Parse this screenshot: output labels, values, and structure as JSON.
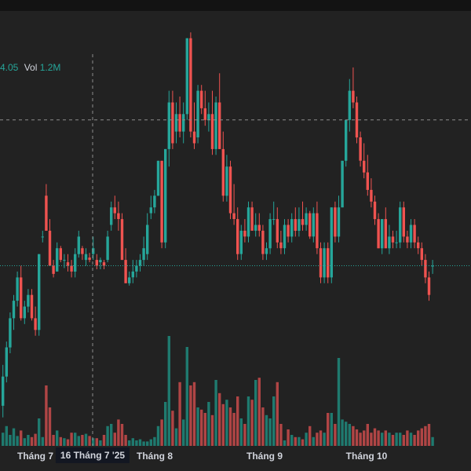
{
  "legend": {
    "value_text": "4.05",
    "vol_label": "Vol",
    "vol_value": "1.2M"
  },
  "crosshair": {
    "date_label": "16 Tháng 7 '25"
  },
  "colors": {
    "background": "#222222",
    "up": "#26a69a",
    "down": "#ef5350",
    "up_volume": "#1f7a6f",
    "down_volume": "#b04545",
    "axis_text": "#d1d4dc",
    "crosshair_line": "#8c8c8c",
    "last_price_line": "#26a69a"
  },
  "chart_data": {
    "type": "candlestick",
    "x_axis_labels": [
      "Tháng 7",
      "Tháng 8",
      "Tháng 9",
      "Tháng 10"
    ],
    "crosshair_price": 9.7,
    "last_price": 8.45,
    "candles": [
      {
        "o": 7.25,
        "h": 7.6,
        "l": 7.15,
        "c": 7.5,
        "v": 12
      },
      {
        "o": 7.5,
        "h": 7.8,
        "l": 7.45,
        "c": 7.75,
        "v": 18
      },
      {
        "o": 7.75,
        "h": 8.05,
        "l": 7.7,
        "c": 8.0,
        "v": 10
      },
      {
        "o": 8.0,
        "h": 8.2,
        "l": 7.9,
        "c": 8.15,
        "v": 16
      },
      {
        "o": 8.15,
        "h": 8.4,
        "l": 8.1,
        "c": 8.35,
        "v": 9
      },
      {
        "o": 8.35,
        "h": 8.45,
        "l": 7.98,
        "c": 8.0,
        "v": 14
      },
      {
        "o": 8.0,
        "h": 8.15,
        "l": 7.95,
        "c": 8.1,
        "v": 7
      },
      {
        "o": 8.1,
        "h": 8.25,
        "l": 8.05,
        "c": 8.2,
        "v": 10
      },
      {
        "o": 8.2,
        "h": 8.25,
        "l": 7.98,
        "c": 8.0,
        "v": 8
      },
      {
        "o": 8.0,
        "h": 8.1,
        "l": 7.85,
        "c": 7.9,
        "v": 11
      },
      {
        "o": 7.9,
        "h": 8.55,
        "l": 7.85,
        "c": 8.55,
        "v": 25
      },
      {
        "o": 8.7,
        "h": 8.75,
        "l": 8.65,
        "c": 8.7,
        "v": 8
      },
      {
        "o": 9.05,
        "h": 9.15,
        "l": 8.75,
        "c": 8.75,
        "v": 55
      },
      {
        "o": 8.75,
        "h": 8.85,
        "l": 8.45,
        "c": 8.45,
        "v": 35
      },
      {
        "o": 8.45,
        "h": 8.5,
        "l": 8.35,
        "c": 8.38,
        "v": 10
      },
      {
        "o": 8.4,
        "h": 8.65,
        "l": 8.4,
        "c": 8.6,
        "v": 14
      },
      {
        "o": 8.6,
        "h": 8.62,
        "l": 8.48,
        "c": 8.5,
        "v": 8
      },
      {
        "o": 8.5,
        "h": 8.55,
        "l": 8.43,
        "c": 8.5,
        "v": 7
      },
      {
        "o": 8.48,
        "h": 8.55,
        "l": 8.4,
        "c": 8.45,
        "v": 6
      },
      {
        "o": 8.45,
        "h": 8.5,
        "l": 8.35,
        "c": 8.4,
        "v": 12
      },
      {
        "o": 8.4,
        "h": 8.6,
        "l": 8.35,
        "c": 8.55,
        "v": 12
      },
      {
        "o": 8.55,
        "h": 8.75,
        "l": 8.52,
        "c": 8.7,
        "v": 9
      },
      {
        "o": 8.6,
        "h": 8.62,
        "l": 8.5,
        "c": 8.55,
        "v": 10
      },
      {
        "o": 8.5,
        "h": 8.6,
        "l": 8.45,
        "c": 8.55,
        "v": 11
      },
      {
        "o": 8.52,
        "h": 8.56,
        "l": 8.48,
        "c": 8.5,
        "v": 9
      },
      {
        "o": 8.55,
        "h": 8.7,
        "l": 8.5,
        "c": 8.6,
        "v": 7
      },
      {
        "o": 8.5,
        "h": 8.55,
        "l": 8.42,
        "c": 8.45,
        "v": 7
      },
      {
        "o": 8.48,
        "h": 8.52,
        "l": 8.42,
        "c": 8.5,
        "v": 5
      },
      {
        "o": 8.48,
        "h": 8.5,
        "l": 8.42,
        "c": 8.45,
        "v": 10
      },
      {
        "o": 8.5,
        "h": 8.75,
        "l": 8.48,
        "c": 8.7,
        "v": 18
      },
      {
        "o": 8.8,
        "h": 9.0,
        "l": 8.75,
        "c": 8.95,
        "v": 20
      },
      {
        "o": 8.95,
        "h": 9.05,
        "l": 8.85,
        "c": 8.9,
        "v": 12
      },
      {
        "o": 8.9,
        "h": 9.0,
        "l": 8.75,
        "c": 8.85,
        "v": 24
      },
      {
        "o": 8.85,
        "h": 8.9,
        "l": 8.5,
        "c": 8.5,
        "v": 20
      },
      {
        "o": 8.5,
        "h": 8.6,
        "l": 8.3,
        "c": 8.3,
        "v": 10
      },
      {
        "o": 8.3,
        "h": 8.4,
        "l": 8.28,
        "c": 8.35,
        "v": 5
      },
      {
        "o": 8.35,
        "h": 8.5,
        "l": 8.3,
        "c": 8.4,
        "v": 7
      },
      {
        "o": 8.4,
        "h": 8.5,
        "l": 8.35,
        "c": 8.45,
        "v": 5
      },
      {
        "o": 8.45,
        "h": 8.55,
        "l": 8.4,
        "c": 8.5,
        "v": 6
      },
      {
        "o": 8.5,
        "h": 8.7,
        "l": 8.45,
        "c": 8.6,
        "v": 4
      },
      {
        "o": 8.55,
        "h": 8.9,
        "l": 8.5,
        "c": 8.8,
        "v": 4
      },
      {
        "o": 8.9,
        "h": 9.05,
        "l": 8.85,
        "c": 8.95,
        "v": 6
      },
      {
        "o": 8.95,
        "h": 9.1,
        "l": 8.9,
        "c": 9.05,
        "v": 8
      },
      {
        "o": 9.05,
        "h": 9.35,
        "l": 9.05,
        "c": 9.35,
        "v": 18
      },
      {
        "o": 9.35,
        "h": 9.35,
        "l": 8.6,
        "c": 8.65,
        "v": 24
      },
      {
        "o": 8.65,
        "h": 9.45,
        "l": 8.6,
        "c": 9.45,
        "v": 40
      },
      {
        "o": 9.45,
        "h": 9.95,
        "l": 9.3,
        "c": 9.85,
        "v": 100
      },
      {
        "o": 9.85,
        "h": 9.95,
        "l": 9.45,
        "c": 9.5,
        "v": 32
      },
      {
        "o": 9.6,
        "h": 9.85,
        "l": 9.5,
        "c": 9.75,
        "v": 16
      },
      {
        "o": 9.75,
        "h": 9.9,
        "l": 9.55,
        "c": 9.6,
        "v": 58
      },
      {
        "o": 9.6,
        "h": 9.85,
        "l": 9.5,
        "c": 9.75,
        "v": 24
      },
      {
        "o": 9.75,
        "h": 10.4,
        "l": 9.7,
        "c": 10.4,
        "v": 90
      },
      {
        "o": 10.4,
        "h": 10.45,
        "l": 9.55,
        "c": 9.6,
        "v": 55
      },
      {
        "o": 9.6,
        "h": 9.85,
        "l": 9.45,
        "c": 9.5,
        "v": 58
      },
      {
        "o": 9.55,
        "h": 10.0,
        "l": 9.5,
        "c": 9.95,
        "v": 35
      },
      {
        "o": 9.95,
        "h": 10.0,
        "l": 9.75,
        "c": 9.8,
        "v": 33
      },
      {
        "o": 9.8,
        "h": 9.95,
        "l": 9.65,
        "c": 9.7,
        "v": 30
      },
      {
        "o": 9.7,
        "h": 9.85,
        "l": 9.6,
        "c": 9.75,
        "v": 40
      },
      {
        "o": 9.75,
        "h": 9.95,
        "l": 9.4,
        "c": 9.45,
        "v": 28
      },
      {
        "o": 9.45,
        "h": 9.9,
        "l": 9.4,
        "c": 9.85,
        "v": 60
      },
      {
        "o": 9.85,
        "h": 10.1,
        "l": 9.45,
        "c": 9.45,
        "v": 48
      },
      {
        "o": 9.45,
        "h": 9.6,
        "l": 9.0,
        "c": 9.05,
        "v": 38
      },
      {
        "o": 9.05,
        "h": 9.4,
        "l": 9.0,
        "c": 9.3,
        "v": 42
      },
      {
        "o": 9.3,
        "h": 9.35,
        "l": 8.85,
        "c": 8.9,
        "v": 35
      },
      {
        "o": 8.9,
        "h": 9.15,
        "l": 8.8,
        "c": 8.85,
        "v": 30
      },
      {
        "o": 8.85,
        "h": 8.95,
        "l": 8.5,
        "c": 8.55,
        "v": 45
      },
      {
        "o": 8.55,
        "h": 8.8,
        "l": 8.5,
        "c": 8.75,
        "v": 25
      },
      {
        "o": 8.75,
        "h": 8.85,
        "l": 8.65,
        "c": 8.7,
        "v": 20
      },
      {
        "o": 8.7,
        "h": 9.0,
        "l": 8.65,
        "c": 8.95,
        "v": 45
      },
      {
        "o": 8.95,
        "h": 9.0,
        "l": 8.75,
        "c": 8.75,
        "v": 42
      },
      {
        "o": 8.75,
        "h": 8.9,
        "l": 8.7,
        "c": 8.8,
        "v": 60
      },
      {
        "o": 8.8,
        "h": 8.9,
        "l": 8.7,
        "c": 8.75,
        "v": 62
      },
      {
        "o": 8.75,
        "h": 8.8,
        "l": 8.5,
        "c": 8.55,
        "v": 35
      },
      {
        "o": 8.55,
        "h": 8.65,
        "l": 8.5,
        "c": 8.6,
        "v": 28
      },
      {
        "o": 8.6,
        "h": 8.9,
        "l": 8.55,
        "c": 8.85,
        "v": 25
      },
      {
        "o": 8.85,
        "h": 9.0,
        "l": 8.8,
        "c": 8.85,
        "v": 45
      },
      {
        "o": 8.85,
        "h": 8.95,
        "l": 8.6,
        "c": 8.65,
        "v": 58
      },
      {
        "o": 8.65,
        "h": 8.75,
        "l": 8.55,
        "c": 8.6,
        "v": 20
      },
      {
        "o": 8.6,
        "h": 8.85,
        "l": 8.55,
        "c": 8.8,
        "v": 5
      },
      {
        "o": 8.8,
        "h": 8.85,
        "l": 8.65,
        "c": 8.7,
        "v": 15
      },
      {
        "o": 8.7,
        "h": 8.9,
        "l": 8.65,
        "c": 8.85,
        "v": 10
      },
      {
        "o": 8.85,
        "h": 8.95,
        "l": 8.7,
        "c": 8.75,
        "v": 8
      },
      {
        "o": 8.75,
        "h": 8.95,
        "l": 8.7,
        "c": 8.85,
        "v": 8
      },
      {
        "o": 8.85,
        "h": 9.0,
        "l": 8.75,
        "c": 8.8,
        "v": 6
      },
      {
        "o": 8.8,
        "h": 8.95,
        "l": 8.75,
        "c": 8.9,
        "v": 12
      },
      {
        "o": 8.9,
        "h": 8.92,
        "l": 8.68,
        "c": 8.7,
        "v": 18
      },
      {
        "o": 8.7,
        "h": 8.95,
        "l": 8.65,
        "c": 8.9,
        "v": 8
      },
      {
        "o": 8.9,
        "h": 9.0,
        "l": 8.55,
        "c": 8.6,
        "v": 12
      },
      {
        "o": 8.6,
        "h": 8.65,
        "l": 8.3,
        "c": 8.35,
        "v": 14
      },
      {
        "o": 8.35,
        "h": 8.65,
        "l": 8.3,
        "c": 8.6,
        "v": 12
      },
      {
        "o": 8.6,
        "h": 8.65,
        "l": 8.3,
        "c": 8.35,
        "v": 30
      },
      {
        "o": 8.35,
        "h": 8.95,
        "l": 8.3,
        "c": 8.95,
        "v": 30
      },
      {
        "o": 8.95,
        "h": 9.0,
        "l": 8.65,
        "c": 8.7,
        "v": 20
      },
      {
        "o": 8.7,
        "h": 9.05,
        "l": 8.65,
        "c": 8.95,
        "v": 80
      },
      {
        "o": 8.95,
        "h": 9.35,
        "l": 8.95,
        "c": 9.35,
        "v": 24
      },
      {
        "o": 9.35,
        "h": 9.7,
        "l": 9.3,
        "c": 9.7,
        "v": 22
      },
      {
        "o": 9.7,
        "h": 10.05,
        "l": 9.6,
        "c": 9.95,
        "v": 20
      },
      {
        "o": 9.95,
        "h": 10.15,
        "l": 9.8,
        "c": 9.85,
        "v": 18
      },
      {
        "o": 9.85,
        "h": 9.9,
        "l": 9.5,
        "c": 9.55,
        "v": 15
      },
      {
        "o": 9.55,
        "h": 9.6,
        "l": 9.3,
        "c": 9.35,
        "v": 12
      },
      {
        "o": 9.35,
        "h": 9.5,
        "l": 9.2,
        "c": 9.25,
        "v": 14
      },
      {
        "o": 9.25,
        "h": 9.4,
        "l": 9.05,
        "c": 9.1,
        "v": 20
      },
      {
        "o": 9.1,
        "h": 9.2,
        "l": 8.95,
        "c": 9.0,
        "v": 12
      },
      {
        "o": 9.0,
        "h": 9.05,
        "l": 8.8,
        "c": 8.85,
        "v": 16
      },
      {
        "o": 8.85,
        "h": 8.9,
        "l": 8.6,
        "c": 8.6,
        "v": 14
      },
      {
        "o": 8.6,
        "h": 8.85,
        "l": 8.55,
        "c": 8.85,
        "v": 12
      },
      {
        "o": 8.85,
        "h": 8.95,
        "l": 8.6,
        "c": 8.6,
        "v": 14
      },
      {
        "o": 8.6,
        "h": 8.8,
        "l": 8.55,
        "c": 8.7,
        "v": 12
      },
      {
        "o": 8.7,
        "h": 8.75,
        "l": 8.6,
        "c": 8.65,
        "v": 10
      },
      {
        "o": 8.65,
        "h": 8.75,
        "l": 8.6,
        "c": 8.65,
        "v": 12
      },
      {
        "o": 8.65,
        "h": 9.0,
        "l": 8.6,
        "c": 8.95,
        "v": 12
      },
      {
        "o": 8.95,
        "h": 9.0,
        "l": 8.65,
        "c": 8.7,
        "v": 10
      },
      {
        "o": 8.7,
        "h": 8.75,
        "l": 8.6,
        "c": 8.65,
        "v": 14
      },
      {
        "o": 8.65,
        "h": 8.85,
        "l": 8.6,
        "c": 8.8,
        "v": 12
      },
      {
        "o": 8.8,
        "h": 8.85,
        "l": 8.6,
        "c": 8.65,
        "v": 10
      },
      {
        "o": 8.65,
        "h": 8.7,
        "l": 8.55,
        "c": 8.6,
        "v": 14
      },
      {
        "o": 8.6,
        "h": 8.65,
        "l": 8.45,
        "c": 8.5,
        "v": 16
      },
      {
        "o": 8.5,
        "h": 8.55,
        "l": 8.3,
        "c": 8.35,
        "v": 18
      },
      {
        "o": 8.35,
        "h": 8.4,
        "l": 8.15,
        "c": 8.2,
        "v": 20
      },
      {
        "o": 8.45,
        "h": 8.5,
        "l": 8.38,
        "c": 8.45,
        "v": 8
      }
    ]
  }
}
